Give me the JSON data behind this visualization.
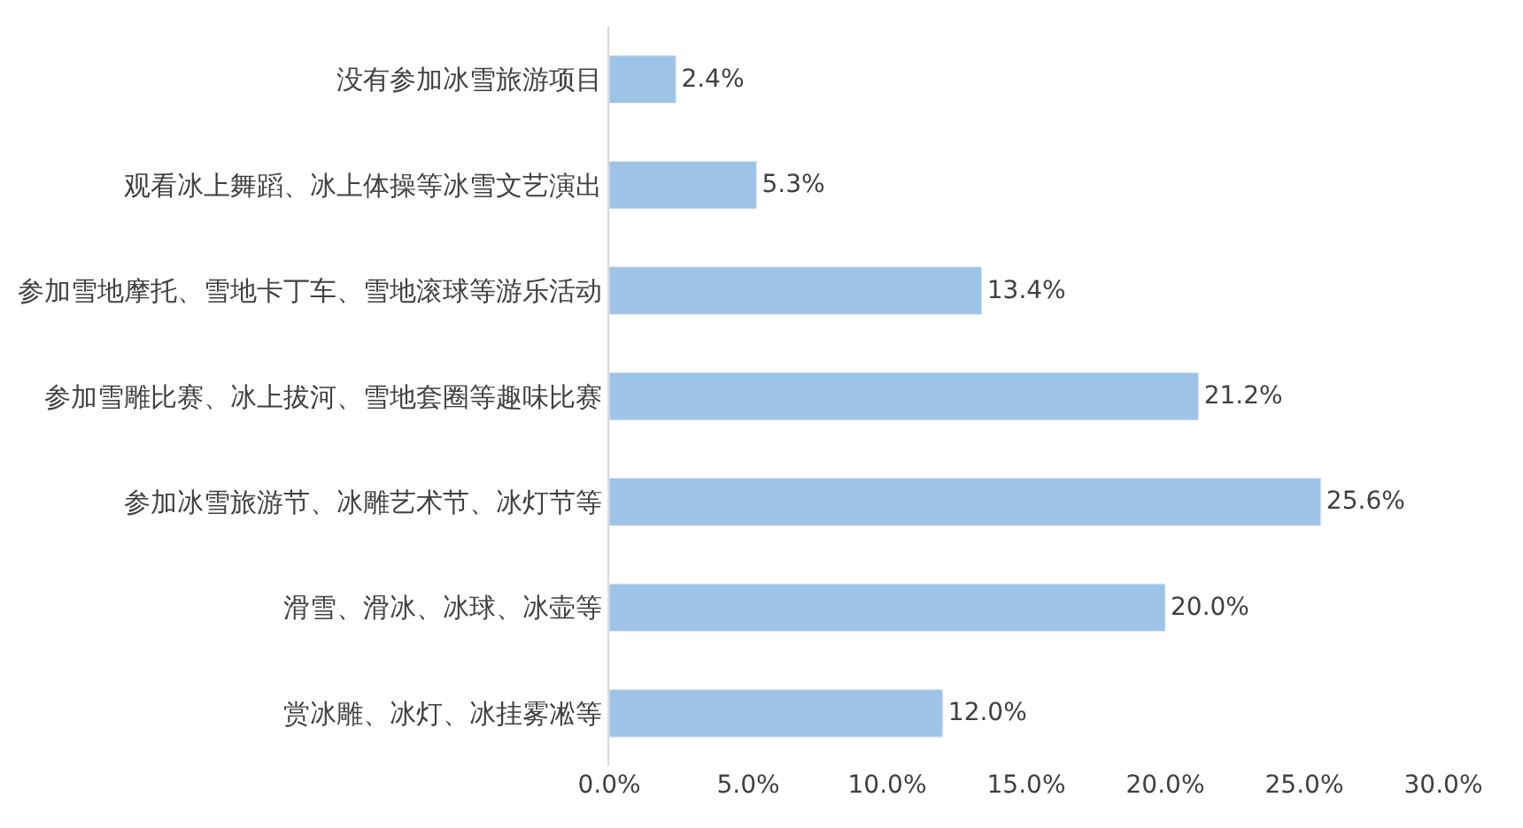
{
  "chart_data": {
    "type": "bar",
    "orientation": "horizontal",
    "categories": [
      "没有参加冰雪旅游项目",
      "观看冰上舞蹈、冰上体操等冰雪文艺演出",
      "参加雪地摩托、雪地卡丁车、雪地滚球等游乐活动",
      "参加雪雕比赛、冰上拔河、雪地套圈等趣味比赛",
      "参加冰雪旅游节、冰雕艺术节、冰灯节等",
      "滑雪、滑冰、冰球、冰壶等",
      "赏冰雕、冰灯、冰挂雾凇等"
    ],
    "values": [
      2.4,
      5.3,
      13.4,
      21.2,
      25.6,
      20.0,
      12.0
    ],
    "value_labels": [
      "2.4%",
      "5.3%",
      "13.4%",
      "21.2%",
      "25.6%",
      "20.0%",
      "12.0%"
    ],
    "color": "#9dc3e6",
    "xlim": [
      0,
      30
    ],
    "xticks": [
      {
        "value": 0,
        "label": "0.0%"
      },
      {
        "value": 5,
        "label": "5.0%"
      },
      {
        "value": 10,
        "label": "10.0%"
      },
      {
        "value": 15,
        "label": "15.0%"
      },
      {
        "value": 20,
        "label": "20.0%"
      },
      {
        "value": 25,
        "label": "25.0%"
      },
      {
        "value": 30,
        "label": "30.0%"
      }
    ],
    "legend": false
  }
}
